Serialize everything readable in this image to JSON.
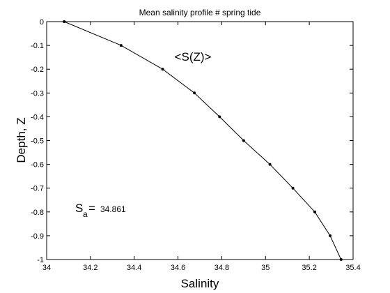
{
  "chart_data": {
    "type": "line",
    "title": "Mean salinity profile # spring tide",
    "xlabel": "Salinity",
    "ylabel": "Depth, Z",
    "xlim": [
      34,
      35.4
    ],
    "ylim": [
      -1,
      0
    ],
    "x_ticks": [
      "34",
      "34.2",
      "34.4",
      "34.6",
      "34.8",
      "35",
      "35.2",
      "35.4"
    ],
    "y_ticks": [
      "0",
      "-0.1",
      "-0.2",
      "-0.3",
      "-0.4",
      "-0.5",
      "-0.6",
      "-0.7",
      "-0.8",
      "-0.9",
      "-1"
    ],
    "grid": false,
    "series": [
      {
        "x": [
          34.08,
          34.34,
          34.53,
          34.675,
          34.79,
          34.9,
          35.02,
          35.125,
          35.225,
          35.295,
          35.345
        ],
        "y": [
          0,
          -0.1,
          -0.2,
          -0.3,
          -0.4,
          -0.5,
          -0.6,
          -0.7,
          -0.8,
          -0.9,
          -1.0
        ],
        "color": "#000000"
      }
    ],
    "annotations": {
      "curve_label": "<S(Z)>",
      "sa_symbol": "S",
      "sa_subscript": "a",
      "sa_equals": "=",
      "sa_value": "34.861"
    }
  }
}
